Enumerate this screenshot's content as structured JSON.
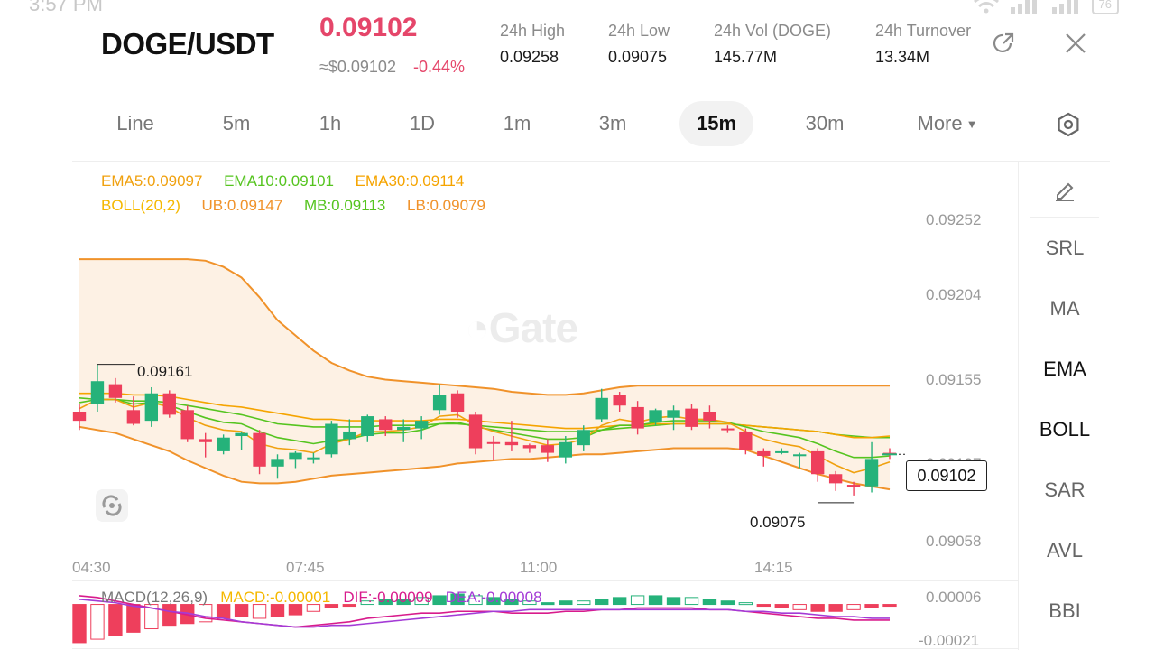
{
  "status": {
    "time": "3:57 PM",
    "battery": "76"
  },
  "header": {
    "pair": "DOGE/USDT",
    "last_price": "0.09102",
    "usd_price": "≈$0.09102",
    "change": "-0.44%",
    "stats": [
      {
        "label": "24h   High",
        "value": "0.09258"
      },
      {
        "label": "24h   Low",
        "value": "0.09075"
      },
      {
        "label": "24h   Vol (DOGE)",
        "value": "145.77M"
      },
      {
        "label": "24h   Turnover",
        "value": "13.34M"
      }
    ],
    "share_icon": "share-icon",
    "close_icon": "close-icon"
  },
  "tabs": [
    {
      "label": "Line"
    },
    {
      "label": "5m"
    },
    {
      "label": "1h"
    },
    {
      "label": "1D"
    },
    {
      "label": "1m"
    },
    {
      "label": "3m"
    },
    {
      "label": "15m"
    },
    {
      "label": "30m"
    },
    {
      "label": "More"
    }
  ],
  "active_tab": "15m",
  "settings_icon": "hexagon-settings-icon",
  "legend": {
    "ema5": "EMA5:0.09097",
    "ema10": "EMA10:0.09101",
    "ema30": "EMA30:0.09114",
    "boll": "BOLL(20,2)",
    "ub": "UB:0.09147",
    "mb": "MB:0.09113",
    "lb": "LB:0.09079"
  },
  "side_menu": [
    {
      "label": "SRL"
    },
    {
      "label": "MA"
    },
    {
      "label": "EMA"
    },
    {
      "label": "BOLL"
    },
    {
      "label": "SAR"
    },
    {
      "label": "AVL"
    },
    {
      "label": "BBI"
    }
  ],
  "pencil_icon": "pencil-icon",
  "y_axis": [
    "0.09252",
    "0.09204",
    "0.09155",
    "0.09107",
    "0.09058"
  ],
  "x_axis": [
    "04:30",
    "07:45",
    "11:00",
    "14:15"
  ],
  "current_price_tag": "0.09102",
  "high_marker": "0.09161",
  "low_marker": "0.09075",
  "watermark": "Gate",
  "macd": {
    "title": "MACD(12,26,9)",
    "macd": "MACD:-0.00001",
    "dif": "DIF:-0.00009",
    "dea": "DEA:-0.00008",
    "y_top": "0.00006",
    "y_bottom": "-0.00021"
  },
  "colors": {
    "up": "#25b27a",
    "down": "#ee3f5c",
    "ema5": "#f0a10f",
    "ema10": "#55c41f",
    "ema30": "#f5a400",
    "boll": "#f0922a",
    "band_fill": "#fdf1e4",
    "dif": "#d81b8c",
    "dea": "#a43bd6"
  },
  "chart_data": {
    "type": "candlestick",
    "candles": [
      {
        "o": 0.0913,
        "h": 0.09135,
        "l": 0.09118,
        "c": 0.09124
      },
      {
        "o": 0.09135,
        "h": 0.09161,
        "l": 0.0913,
        "c": 0.0915
      },
      {
        "o": 0.09148,
        "h": 0.09152,
        "l": 0.09136,
        "c": 0.09139
      },
      {
        "o": 0.09131,
        "h": 0.0914,
        "l": 0.09121,
        "c": 0.09122
      },
      {
        "o": 0.09124,
        "h": 0.09146,
        "l": 0.0912,
        "c": 0.09142
      },
      {
        "o": 0.09142,
        "h": 0.09144,
        "l": 0.09126,
        "c": 0.09128
      },
      {
        "o": 0.09131,
        "h": 0.09134,
        "l": 0.0911,
        "c": 0.09112
      },
      {
        "o": 0.09112,
        "h": 0.09116,
        "l": 0.091,
        "c": 0.0911
      },
      {
        "o": 0.09104,
        "h": 0.09115,
        "l": 0.09102,
        "c": 0.09113
      },
      {
        "o": 0.09114,
        "h": 0.09117,
        "l": 0.09105,
        "c": 0.09116
      },
      {
        "o": 0.09116,
        "h": 0.09118,
        "l": 0.09089,
        "c": 0.09094
      },
      {
        "o": 0.09094,
        "h": 0.09102,
        "l": 0.09086,
        "c": 0.09099
      },
      {
        "o": 0.09099,
        "h": 0.09104,
        "l": 0.09093,
        "c": 0.09103
      },
      {
        "o": 0.091,
        "h": 0.09103,
        "l": 0.09096,
        "c": 0.091
      },
      {
        "o": 0.09102,
        "h": 0.09124,
        "l": 0.091,
        "c": 0.09122
      },
      {
        "o": 0.09112,
        "h": 0.09125,
        "l": 0.09108,
        "c": 0.09117
      },
      {
        "o": 0.09114,
        "h": 0.09128,
        "l": 0.0911,
        "c": 0.09127
      },
      {
        "o": 0.09125,
        "h": 0.09127,
        "l": 0.09114,
        "c": 0.09118
      },
      {
        "o": 0.09118,
        "h": 0.09125,
        "l": 0.0911,
        "c": 0.0912
      },
      {
        "o": 0.09119,
        "h": 0.09127,
        "l": 0.09112,
        "c": 0.09124
      },
      {
        "o": 0.09131,
        "h": 0.09148,
        "l": 0.09128,
        "c": 0.09141
      },
      {
        "o": 0.09142,
        "h": 0.09144,
        "l": 0.09126,
        "c": 0.0913
      },
      {
        "o": 0.09128,
        "h": 0.0913,
        "l": 0.09102,
        "c": 0.09106
      },
      {
        "o": 0.0911,
        "h": 0.09114,
        "l": 0.09098,
        "c": 0.09109
      },
      {
        "o": 0.0911,
        "h": 0.09124,
        "l": 0.09104,
        "c": 0.09108
      },
      {
        "o": 0.09108,
        "h": 0.09109,
        "l": 0.09103,
        "c": 0.09106
      },
      {
        "o": 0.09108,
        "h": 0.09112,
        "l": 0.09097,
        "c": 0.09103
      },
      {
        "o": 0.091,
        "h": 0.09114,
        "l": 0.09096,
        "c": 0.0911
      },
      {
        "o": 0.09108,
        "h": 0.09121,
        "l": 0.09104,
        "c": 0.09118
      },
      {
        "o": 0.09125,
        "h": 0.09145,
        "l": 0.09123,
        "c": 0.09139
      },
      {
        "o": 0.09141,
        "h": 0.09143,
        "l": 0.0913,
        "c": 0.09134
      },
      {
        "o": 0.09133,
        "h": 0.09137,
        "l": 0.09115,
        "c": 0.09119
      },
      {
        "o": 0.09123,
        "h": 0.09132,
        "l": 0.09121,
        "c": 0.09131
      },
      {
        "o": 0.09126,
        "h": 0.09134,
        "l": 0.09118,
        "c": 0.09131
      },
      {
        "o": 0.09132,
        "h": 0.09135,
        "l": 0.09118,
        "c": 0.0912
      },
      {
        "o": 0.0913,
        "h": 0.09134,
        "l": 0.09119,
        "c": 0.09124
      },
      {
        "o": 0.09119,
        "h": 0.09121,
        "l": 0.09116,
        "c": 0.09118
      },
      {
        "o": 0.09117,
        "h": 0.09119,
        "l": 0.09102,
        "c": 0.09105
      },
      {
        "o": 0.09104,
        "h": 0.09106,
        "l": 0.09094,
        "c": 0.09101
      },
      {
        "o": 0.09104,
        "h": 0.09106,
        "l": 0.09102,
        "c": 0.09104
      },
      {
        "o": 0.09102,
        "h": 0.09103,
        "l": 0.09093,
        "c": 0.09102
      },
      {
        "o": 0.09104,
        "h": 0.09106,
        "l": 0.09084,
        "c": 0.09089
      },
      {
        "o": 0.09089,
        "h": 0.09091,
        "l": 0.09078,
        "c": 0.09083
      },
      {
        "o": 0.09082,
        "h": 0.09084,
        "l": 0.09075,
        "c": 0.09081
      },
      {
        "o": 0.09081,
        "h": 0.0911,
        "l": 0.09077,
        "c": 0.09099
      },
      {
        "o": 0.09103,
        "h": 0.09106,
        "l": 0.09099,
        "c": 0.09102
      }
    ],
    "ema5": [
      0.09132,
      0.09138,
      0.09138,
      0.09133,
      0.09136,
      0.09133,
      0.09126,
      0.09121,
      0.09118,
      0.09117,
      0.09109,
      0.09106,
      0.09105,
      0.09103,
      0.09109,
      0.09112,
      0.09117,
      0.09117,
      0.09118,
      0.0912,
      0.09127,
      0.09128,
      0.09121,
      0.09117,
      0.09114,
      0.09111,
      0.09108,
      0.09109,
      0.09112,
      0.09121,
      0.09125,
      0.09123,
      0.09126,
      0.09127,
      0.09125,
      0.09125,
      0.09123,
      0.09117,
      0.09112,
      0.09109,
      0.09107,
      0.09101,
      0.09095,
      0.0909,
      0.09093,
      0.09097
    ],
    "ema10": [
      0.09136,
      0.09138,
      0.09138,
      0.09135,
      0.09136,
      0.09134,
      0.0913,
      0.09126,
      0.09123,
      0.09122,
      0.09117,
      0.09113,
      0.09111,
      0.09109,
      0.09111,
      0.09112,
      0.09115,
      0.09116,
      0.09116,
      0.09118,
      0.09122,
      0.09123,
      0.0912,
      0.09118,
      0.09116,
      0.09114,
      0.09112,
      0.09112,
      0.09113,
      0.09118,
      0.09121,
      0.09121,
      0.09123,
      0.09124,
      0.09124,
      0.09124,
      0.09123,
      0.0912,
      0.09117,
      0.09115,
      0.09113,
      0.09109,
      0.09104,
      0.091,
      0.091,
      0.09101
    ],
    "ema30": [
      0.09142,
      0.09142,
      0.09142,
      0.09141,
      0.09141,
      0.0914,
      0.09138,
      0.09136,
      0.09134,
      0.09133,
      0.09131,
      0.09129,
      0.09127,
      0.09125,
      0.09125,
      0.09124,
      0.09124,
      0.09124,
      0.09124,
      0.09124,
      0.09125,
      0.09125,
      0.09124,
      0.09123,
      0.09122,
      0.09121,
      0.0912,
      0.09119,
      0.09119,
      0.0912,
      0.09121,
      0.09121,
      0.09122,
      0.09122,
      0.09122,
      0.09122,
      0.09122,
      0.09121,
      0.0912,
      0.09119,
      0.09118,
      0.09117,
      0.09115,
      0.09113,
      0.09113,
      0.09114
    ],
    "boll_ub": [
      0.0923,
      0.0923,
      0.0923,
      0.0923,
      0.0923,
      0.0923,
      0.0923,
      0.09229,
      0.09225,
      0.09218,
      0.09205,
      0.0919,
      0.0918,
      0.0917,
      0.09162,
      0.09157,
      0.09153,
      0.09151,
      0.0915,
      0.09149,
      0.09148,
      0.09147,
      0.09146,
      0.09145,
      0.09143,
      0.09142,
      0.09141,
      0.09141,
      0.09142,
      0.09144,
      0.09146,
      0.09147,
      0.09147,
      0.09147,
      0.09147,
      0.09147,
      0.09147,
      0.09147,
      0.09147,
      0.09147,
      0.09147,
      0.09147,
      0.09147,
      0.09147,
      0.09147,
      0.09147
    ],
    "boll_mb": [
      0.09139,
      0.09138,
      0.09138,
      0.09137,
      0.09137,
      0.09136,
      0.09134,
      0.09132,
      0.0913,
      0.09128,
      0.09125,
      0.09122,
      0.09121,
      0.0912,
      0.0912,
      0.0912,
      0.0912,
      0.09121,
      0.09121,
      0.09121,
      0.09122,
      0.09122,
      0.09121,
      0.0912,
      0.09119,
      0.09118,
      0.09117,
      0.09117,
      0.09117,
      0.09118,
      0.09119,
      0.0912,
      0.09121,
      0.09122,
      0.09122,
      0.09122,
      0.09122,
      0.09121,
      0.0912,
      0.09119,
      0.09118,
      0.09117,
      0.09115,
      0.09114,
      0.09113,
      0.09113
    ],
    "boll_lb": [
      0.0912,
      0.09118,
      0.09116,
      0.09112,
      0.09108,
      0.09104,
      0.09098,
      0.09093,
      0.09088,
      0.09084,
      0.09083,
      0.09083,
      0.09084,
      0.09086,
      0.09088,
      0.09089,
      0.0909,
      0.09091,
      0.09092,
      0.09093,
      0.09094,
      0.09096,
      0.09097,
      0.09098,
      0.09099,
      0.09099,
      0.091,
      0.09101,
      0.09102,
      0.09102,
      0.09103,
      0.09104,
      0.09105,
      0.09106,
      0.09106,
      0.09106,
      0.09106,
      0.09105,
      0.09101,
      0.09097,
      0.09093,
      0.09089,
      0.09086,
      0.09083,
      0.09081,
      0.09079
    ],
    "y_range": [
      0.0904,
      0.09265
    ],
    "macd_hist": [
      -2.2e-05,
      -2e-05,
      -1.8e-05,
      -1.6e-05,
      -1.4e-05,
      -1.2e-05,
      -1.1e-05,
      -1e-05,
      -8e-06,
      -7e-06,
      -8e-06,
      -7e-06,
      -6e-06,
      -4e-06,
      -2e-06,
      -1e-06,
      2e-06,
      3e-06,
      3e-06,
      4e-06,
      5e-06,
      6e-06,
      5e-06,
      4e-06,
      3e-06,
      2e-06,
      1e-06,
      2e-06,
      2e-06,
      3e-06,
      4e-06,
      5e-06,
      5e-06,
      4e-06,
      4e-06,
      3e-06,
      2e-06,
      1e-06,
      -1e-06,
      -2e-06,
      -3e-06,
      -4e-06,
      -4e-06,
      -3e-06,
      -2e-06,
      -1e-06
    ],
    "macd_dif": [
      5e-06,
      4e-06,
      2e-06,
      0.0,
      -2e-06,
      -4e-06,
      -6e-06,
      -8e-06,
      -9e-06,
      -1e-05,
      -1.1e-05,
      -1.2e-05,
      -1.3e-05,
      -1.2e-05,
      -1.1e-05,
      -1e-05,
      -8e-06,
      -7e-06,
      -6e-06,
      -5e-06,
      -5e-06,
      -4e-06,
      -4e-06,
      -4e-06,
      -5e-06,
      -5e-06,
      -5e-06,
      -4e-06,
      -4e-06,
      -3e-06,
      -3e-06,
      -2e-06,
      -2e-06,
      -2e-06,
      -2e-06,
      -3e-06,
      -3e-06,
      -4e-06,
      -5e-06,
      -6e-06,
      -7e-06,
      -8e-06,
      -8e-06,
      -9e-06,
      -9e-06,
      -9e-06
    ],
    "macd_dea": [
      3e-06,
      2e-06,
      1e-06,
      -1e-06,
      -2e-06,
      -4e-06,
      -5e-06,
      -7e-06,
      -8e-06,
      -1e-05,
      -1.1e-05,
      -1.2e-05,
      -1.3e-05,
      -1.3e-05,
      -1.2e-05,
      -1.2e-05,
      -1.1e-05,
      -1e-05,
      -9e-06,
      -8e-06,
      -7e-06,
      -6e-06,
      -5e-06,
      -4e-06,
      -4e-06,
      -3e-06,
      -3e-06,
      -3e-06,
      -3e-06,
      -3e-06,
      -3e-06,
      -3e-06,
      -3e-06,
      -3e-06,
      -3e-06,
      -3e-06,
      -3e-06,
      -4e-06,
      -4e-06,
      -5e-06,
      -5e-06,
      -6e-06,
      -7e-06,
      -7e-06,
      -8e-06,
      -8e-06
    ],
    "macd_range": [
      -2.1e-05,
      6e-06
    ]
  }
}
